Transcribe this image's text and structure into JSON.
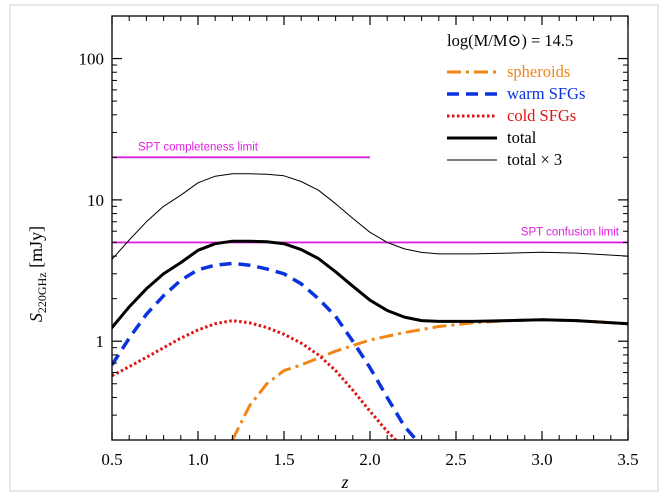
{
  "chart_data": {
    "type": "line",
    "xlabel": "z",
    "ylabel": {
      "main": "S",
      "subscript": "220GHz",
      "unit": "[mJy]"
    },
    "xlim": [
      0.5,
      3.5
    ],
    "ylim": [
      0.2,
      200
    ],
    "yscale": "log",
    "x_ticks": [
      0.5,
      1.0,
      1.5,
      2.0,
      2.5,
      3.0,
      3.5
    ],
    "x_tick_labels": [
      "0.5",
      "1.0",
      "1.5",
      "2.0",
      "2.5",
      "3.0",
      "3.5"
    ],
    "y_ticks": [
      1,
      10,
      100
    ],
    "y_tick_labels": [
      "1",
      "10",
      "100"
    ],
    "grid": false,
    "legend": {
      "placement": "top-right",
      "title": "log(M/M⊙) = 14.5"
    },
    "series": [
      {
        "name": "spheroids",
        "color": "#F08519",
        "style": "dash-dot",
        "width": 3,
        "x": [
          1.2,
          1.3,
          1.4,
          1.5,
          1.6,
          1.8,
          2.0,
          2.2,
          2.4,
          2.6,
          2.8,
          3.0,
          3.2,
          3.5
        ],
        "y": [
          0.2,
          0.35,
          0.5,
          0.62,
          0.68,
          0.85,
          1.02,
          1.15,
          1.27,
          1.35,
          1.4,
          1.42,
          1.4,
          1.33
        ]
      },
      {
        "name": "warm SFGs",
        "color": "#0A33E0",
        "style": "dash",
        "width": 3.5,
        "x": [
          0.5,
          0.6,
          0.7,
          0.8,
          0.9,
          1.0,
          1.1,
          1.2,
          1.3,
          1.4,
          1.5,
          1.6,
          1.7,
          1.8,
          1.9,
          2.0,
          2.1,
          2.2,
          2.27
        ],
        "y": [
          0.68,
          1.05,
          1.55,
          2.1,
          2.7,
          3.2,
          3.45,
          3.55,
          3.45,
          3.25,
          3.0,
          2.55,
          2.0,
          1.5,
          1.0,
          0.65,
          0.4,
          0.25,
          0.2
        ]
      },
      {
        "name": "cold SFGs",
        "color": "#E01414",
        "style": "dot",
        "width": 3,
        "x": [
          0.5,
          0.6,
          0.7,
          0.8,
          0.9,
          1.0,
          1.1,
          1.2,
          1.3,
          1.4,
          1.5,
          1.6,
          1.7,
          1.8,
          1.9,
          2.0,
          2.1,
          2.15
        ],
        "y": [
          0.57,
          0.66,
          0.77,
          0.9,
          1.05,
          1.2,
          1.33,
          1.4,
          1.35,
          1.25,
          1.12,
          0.97,
          0.8,
          0.62,
          0.45,
          0.32,
          0.23,
          0.2
        ]
      },
      {
        "name": "total",
        "color": "#000000",
        "style": "solid",
        "width": 3,
        "x": [
          0.5,
          0.6,
          0.7,
          0.8,
          0.9,
          1.0,
          1.1,
          1.2,
          1.3,
          1.4,
          1.5,
          1.6,
          1.7,
          1.8,
          1.9,
          2.0,
          2.1,
          2.2,
          2.3,
          2.4,
          2.6,
          2.8,
          3.0,
          3.2,
          3.5
        ],
        "y": [
          1.25,
          1.75,
          2.35,
          3.0,
          3.6,
          4.4,
          4.9,
          5.1,
          5.1,
          5.05,
          4.9,
          4.45,
          3.85,
          3.1,
          2.45,
          1.95,
          1.65,
          1.48,
          1.4,
          1.38,
          1.38,
          1.4,
          1.42,
          1.4,
          1.33
        ]
      },
      {
        "name": "total × 3",
        "color": "#000000",
        "style": "solid",
        "width": 1,
        "x": [
          0.5,
          0.6,
          0.7,
          0.8,
          0.9,
          1.0,
          1.1,
          1.2,
          1.3,
          1.4,
          1.5,
          1.6,
          1.7,
          1.8,
          1.9,
          2.0,
          2.1,
          2.2,
          2.3,
          2.4,
          2.6,
          2.8,
          3.0,
          3.2,
          3.5
        ],
        "y": [
          3.8,
          5.2,
          7.0,
          9.0,
          10.8,
          13.2,
          14.7,
          15.3,
          15.3,
          15.2,
          14.8,
          13.5,
          11.7,
          9.4,
          7.4,
          5.9,
          5.0,
          4.5,
          4.25,
          4.15,
          4.15,
          4.2,
          4.26,
          4.2,
          4.0
        ]
      }
    ],
    "reference_lines": [
      {
        "label": "SPT completeness limit",
        "y": 20,
        "x_range": [
          0.5,
          2.0
        ],
        "color": "#E020E0"
      },
      {
        "label": "SPT confusion limit",
        "y": 5,
        "x_range": [
          0.5,
          3.5
        ],
        "color": "#E020E0"
      }
    ]
  }
}
